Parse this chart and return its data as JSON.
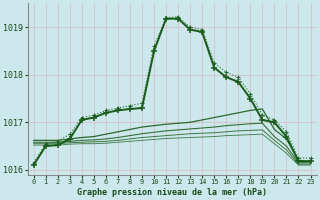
{
  "title": "Graphe pression niveau de la mer (hPa)",
  "bg_color": "#cce8ec",
  "grid_color": "#c0d8dc",
  "text_color": "#1a4a1a",
  "line_color": "#1a5c1a",
  "hours": [
    0,
    1,
    2,
    3,
    4,
    5,
    6,
    7,
    8,
    9,
    10,
    11,
    12,
    13,
    14,
    15,
    16,
    17,
    18,
    19,
    20,
    21,
    22,
    23
  ],
  "line_dotted": [
    1016.15,
    1016.55,
    1016.6,
    1016.75,
    1017.1,
    1017.15,
    1017.25,
    1017.3,
    1017.35,
    1017.4,
    1018.6,
    1019.2,
    1019.22,
    1019.0,
    1018.95,
    1018.25,
    1018.05,
    1017.95,
    1017.6,
    1017.15,
    1017.05,
    1016.8,
    1016.25,
    1016.25
  ],
  "line_solid_main": [
    1016.1,
    1016.5,
    1016.52,
    1016.65,
    1017.05,
    1017.1,
    1017.2,
    1017.25,
    1017.28,
    1017.3,
    1018.5,
    1019.18,
    1019.18,
    1018.95,
    1018.9,
    1018.15,
    1017.95,
    1017.85,
    1017.5,
    1017.05,
    1017.0,
    1016.7,
    1016.18,
    1016.18
  ],
  "line_flat1": [
    1016.62,
    1016.62,
    1016.62,
    1016.65,
    1016.68,
    1016.7,
    1016.75,
    1016.8,
    1016.85,
    1016.9,
    1016.93,
    1016.96,
    1016.98,
    1017.0,
    1017.05,
    1017.1,
    1017.15,
    1017.2,
    1017.25,
    1017.28,
    1016.85,
    1016.65,
    1016.2,
    1016.18
  ],
  "line_flat2": [
    1016.58,
    1016.58,
    1016.58,
    1016.6,
    1016.62,
    1016.63,
    1016.65,
    1016.68,
    1016.72,
    1016.76,
    1016.79,
    1016.82,
    1016.84,
    1016.86,
    1016.88,
    1016.9,
    1016.93,
    1016.95,
    1016.97,
    1016.98,
    1016.7,
    1016.5,
    1016.15,
    1016.15
  ],
  "line_flat3": [
    1016.55,
    1016.55,
    1016.55,
    1016.57,
    1016.58,
    1016.59,
    1016.6,
    1016.62,
    1016.65,
    1016.68,
    1016.7,
    1016.72,
    1016.74,
    1016.76,
    1016.77,
    1016.78,
    1016.8,
    1016.82,
    1016.83,
    1016.84,
    1016.62,
    1016.42,
    1016.12,
    1016.12
  ],
  "line_flat4": [
    1016.52,
    1016.52,
    1016.52,
    1016.54,
    1016.55,
    1016.55,
    1016.56,
    1016.58,
    1016.6,
    1016.62,
    1016.64,
    1016.66,
    1016.67,
    1016.68,
    1016.69,
    1016.7,
    1016.72,
    1016.73,
    1016.74,
    1016.75,
    1016.55,
    1016.35,
    1016.1,
    1016.1
  ],
  "ylim": [
    1015.9,
    1019.5
  ],
  "yticks": [
    1016,
    1017,
    1018,
    1019
  ],
  "xlim": [
    -0.5,
    23.5
  ],
  "xticks": [
    0,
    1,
    2,
    3,
    4,
    5,
    6,
    7,
    8,
    9,
    10,
    11,
    12,
    13,
    14,
    15,
    16,
    17,
    18,
    19,
    20,
    21,
    22,
    23
  ]
}
